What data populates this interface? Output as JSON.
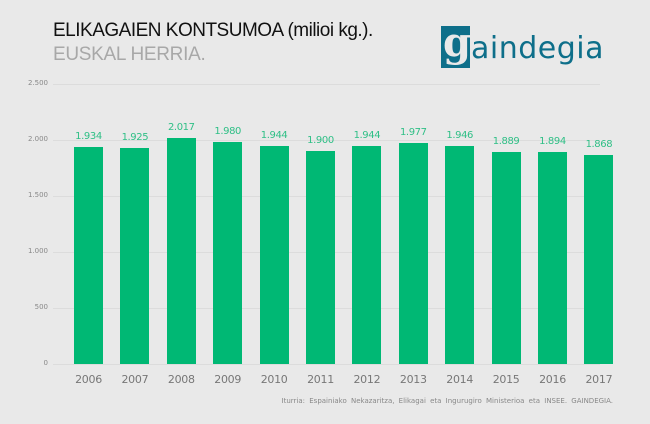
{
  "header": {
    "title": "ELIKAGAIEN KONTSUMOA (milioi kg.).",
    "subtitle": "EUSKAL HERRIA.",
    "logo": {
      "mark": "g",
      "text": "aindegia",
      "color": "#0e6f8a"
    }
  },
  "chart_data": {
    "type": "bar",
    "title": "ELIKAGAIEN KONTSUMOA (milioi kg.).",
    "subtitle": "EUSKAL HERRIA.",
    "xlabel": "",
    "ylabel": "",
    "categories": [
      "2006",
      "2007",
      "2008",
      "2009",
      "2010",
      "2011",
      "2012",
      "2013",
      "2014",
      "2015",
      "2016",
      "2017"
    ],
    "values": [
      1934,
      1925,
      2017,
      1980,
      1944,
      1900,
      1944,
      1977,
      1946,
      1889,
      1894,
      1868
    ],
    "value_labels": [
      "1.934",
      "1.925",
      "2.017",
      "1.980",
      "1.944",
      "1.900",
      "1.944",
      "1.977",
      "1.946",
      "1.889",
      "1.894",
      "1.868"
    ],
    "ylim": [
      0,
      2500
    ],
    "yticks": [
      0,
      500,
      1000,
      1500,
      2000,
      2500
    ],
    "ytick_labels": [
      "0",
      "500",
      "1.000",
      "1.500",
      "2.000",
      "2.500"
    ],
    "grid": true,
    "legend": null,
    "bar_color": "#00b874",
    "label_color": "#2fbf86"
  },
  "footer": {
    "source": "Iturria: Espainiako Nekazaritza, Elikagai eta Ingurugiro Ministerioa eta INSEE. GAINDEGIA."
  }
}
